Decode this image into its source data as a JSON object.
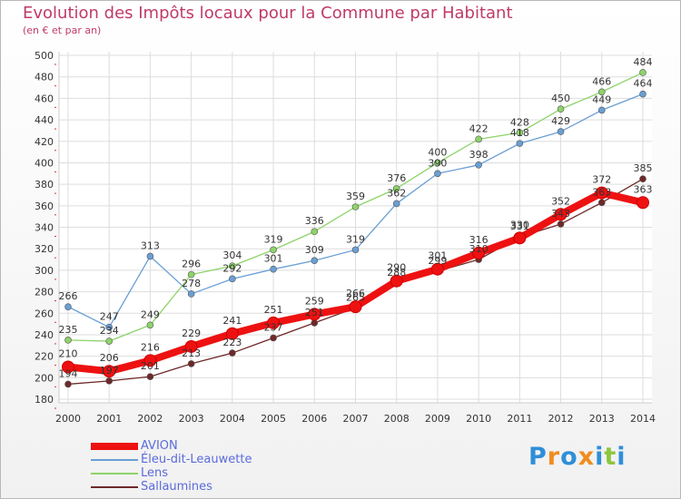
{
  "chart_data": {
    "type": "line",
    "title": "Evolution des Impôts locaux pour la Commune par Habitant",
    "subtitle": "(en € et par an)",
    "categories": [
      "2000",
      "2001",
      "2002",
      "2003",
      "2004",
      "2005",
      "2006",
      "2007",
      "2008",
      "2009",
      "2010",
      "2011",
      "2012",
      "2013",
      "2014"
    ],
    "ylim": [
      180,
      500
    ],
    "yticks": [
      180,
      200,
      220,
      240,
      260,
      280,
      300,
      320,
      340,
      360,
      380,
      400,
      420,
      440,
      460,
      480,
      500
    ],
    "grid": true,
    "legend_position": "bottom-left",
    "series": [
      {
        "name": "AVION",
        "color": "#ee1111",
        "values": [
          210,
          206,
          216,
          229,
          241,
          251,
          259,
          266,
          290,
          301,
          316,
          330,
          352,
          372,
          363
        ]
      },
      {
        "name": "Éleu-dit-Leauwette",
        "color": "#6a9fd4",
        "values": [
          266,
          247,
          313,
          278,
          292,
          301,
          309,
          319,
          362,
          390,
          398,
          418,
          429,
          449,
          464
        ]
      },
      {
        "name": "Lens",
        "color": "#8ed36a",
        "values": [
          235,
          234,
          249,
          296,
          304,
          319,
          336,
          359,
          376,
          400,
          422,
          428,
          450,
          466,
          484
        ]
      },
      {
        "name": "Sallaumines",
        "color": "#6e2828",
        "values": [
          194,
          197,
          201,
          213,
          223,
          237,
          251,
          265,
          288,
          299,
          310,
          331,
          343,
          363,
          385
        ]
      }
    ]
  },
  "logo": {
    "letters": [
      "P",
      "r",
      "o",
      "x",
      "i",
      "t",
      "i"
    ],
    "colors": [
      "#2f8fd8",
      "#f08c1e",
      "#2f8fd8",
      "#f08c1e",
      "#2f8fd8",
      "#8cc63f",
      "#2f8fd8"
    ]
  }
}
